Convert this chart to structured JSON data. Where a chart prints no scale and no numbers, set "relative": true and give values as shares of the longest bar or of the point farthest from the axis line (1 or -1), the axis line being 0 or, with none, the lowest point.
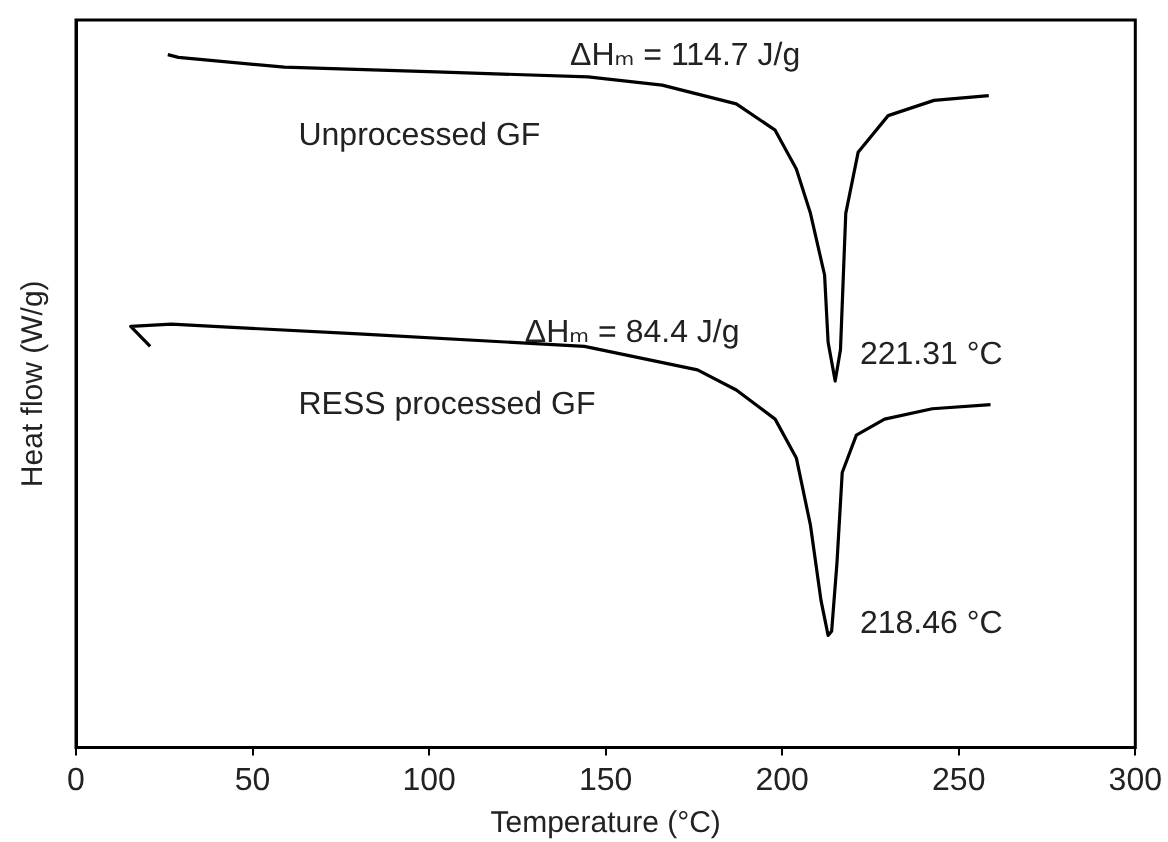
{
  "chart_data": {
    "type": "line",
    "xlabel": "Temperature (°C)",
    "ylabel": "Heat flow (W/g)",
    "relative": true,
    "xlim": [
      0,
      300
    ],
    "xticks": [
      0,
      50,
      100,
      150,
      200,
      250,
      300
    ],
    "grid": false,
    "legend": false,
    "marker": "none",
    "line_style": "solid",
    "series": [
      {
        "name": "Unprocessed GF",
        "color": "#000000",
        "x": [
          26,
          29,
          59,
          102,
          145,
          166,
          187,
          198,
          204,
          208,
          212,
          213,
          215,
          216.5,
          218,
          221.5,
          230,
          243,
          258.5
        ],
        "values": [
          1.0,
          0.996,
          0.982,
          0.975,
          0.968,
          0.956,
          0.929,
          0.891,
          0.835,
          0.771,
          0.682,
          0.585,
          0.529,
          0.574,
          0.771,
          0.859,
          0.912,
          0.934,
          0.941
        ]
      },
      {
        "name": "RESS processed GF",
        "color": "#000000",
        "x": [
          21,
          15.5,
          27,
          80,
          144,
          176,
          187,
          198,
          204,
          208,
          211,
          213,
          214,
          215.5,
          217,
          221,
          229,
          242.5,
          259
        ],
        "values": [
          0.579,
          0.608,
          0.611,
          0.597,
          0.579,
          0.545,
          0.516,
          0.474,
          0.418,
          0.321,
          0.212,
          0.162,
          0.168,
          0.266,
          0.397,
          0.451,
          0.474,
          0.489,
          0.495
        ]
      }
    ],
    "annotations": [
      "ΔHₘ = 114.7 J/g",
      "ΔHₘ = 84.4 J/g",
      "221.31 °C",
      "218.46 °C"
    ]
  }
}
